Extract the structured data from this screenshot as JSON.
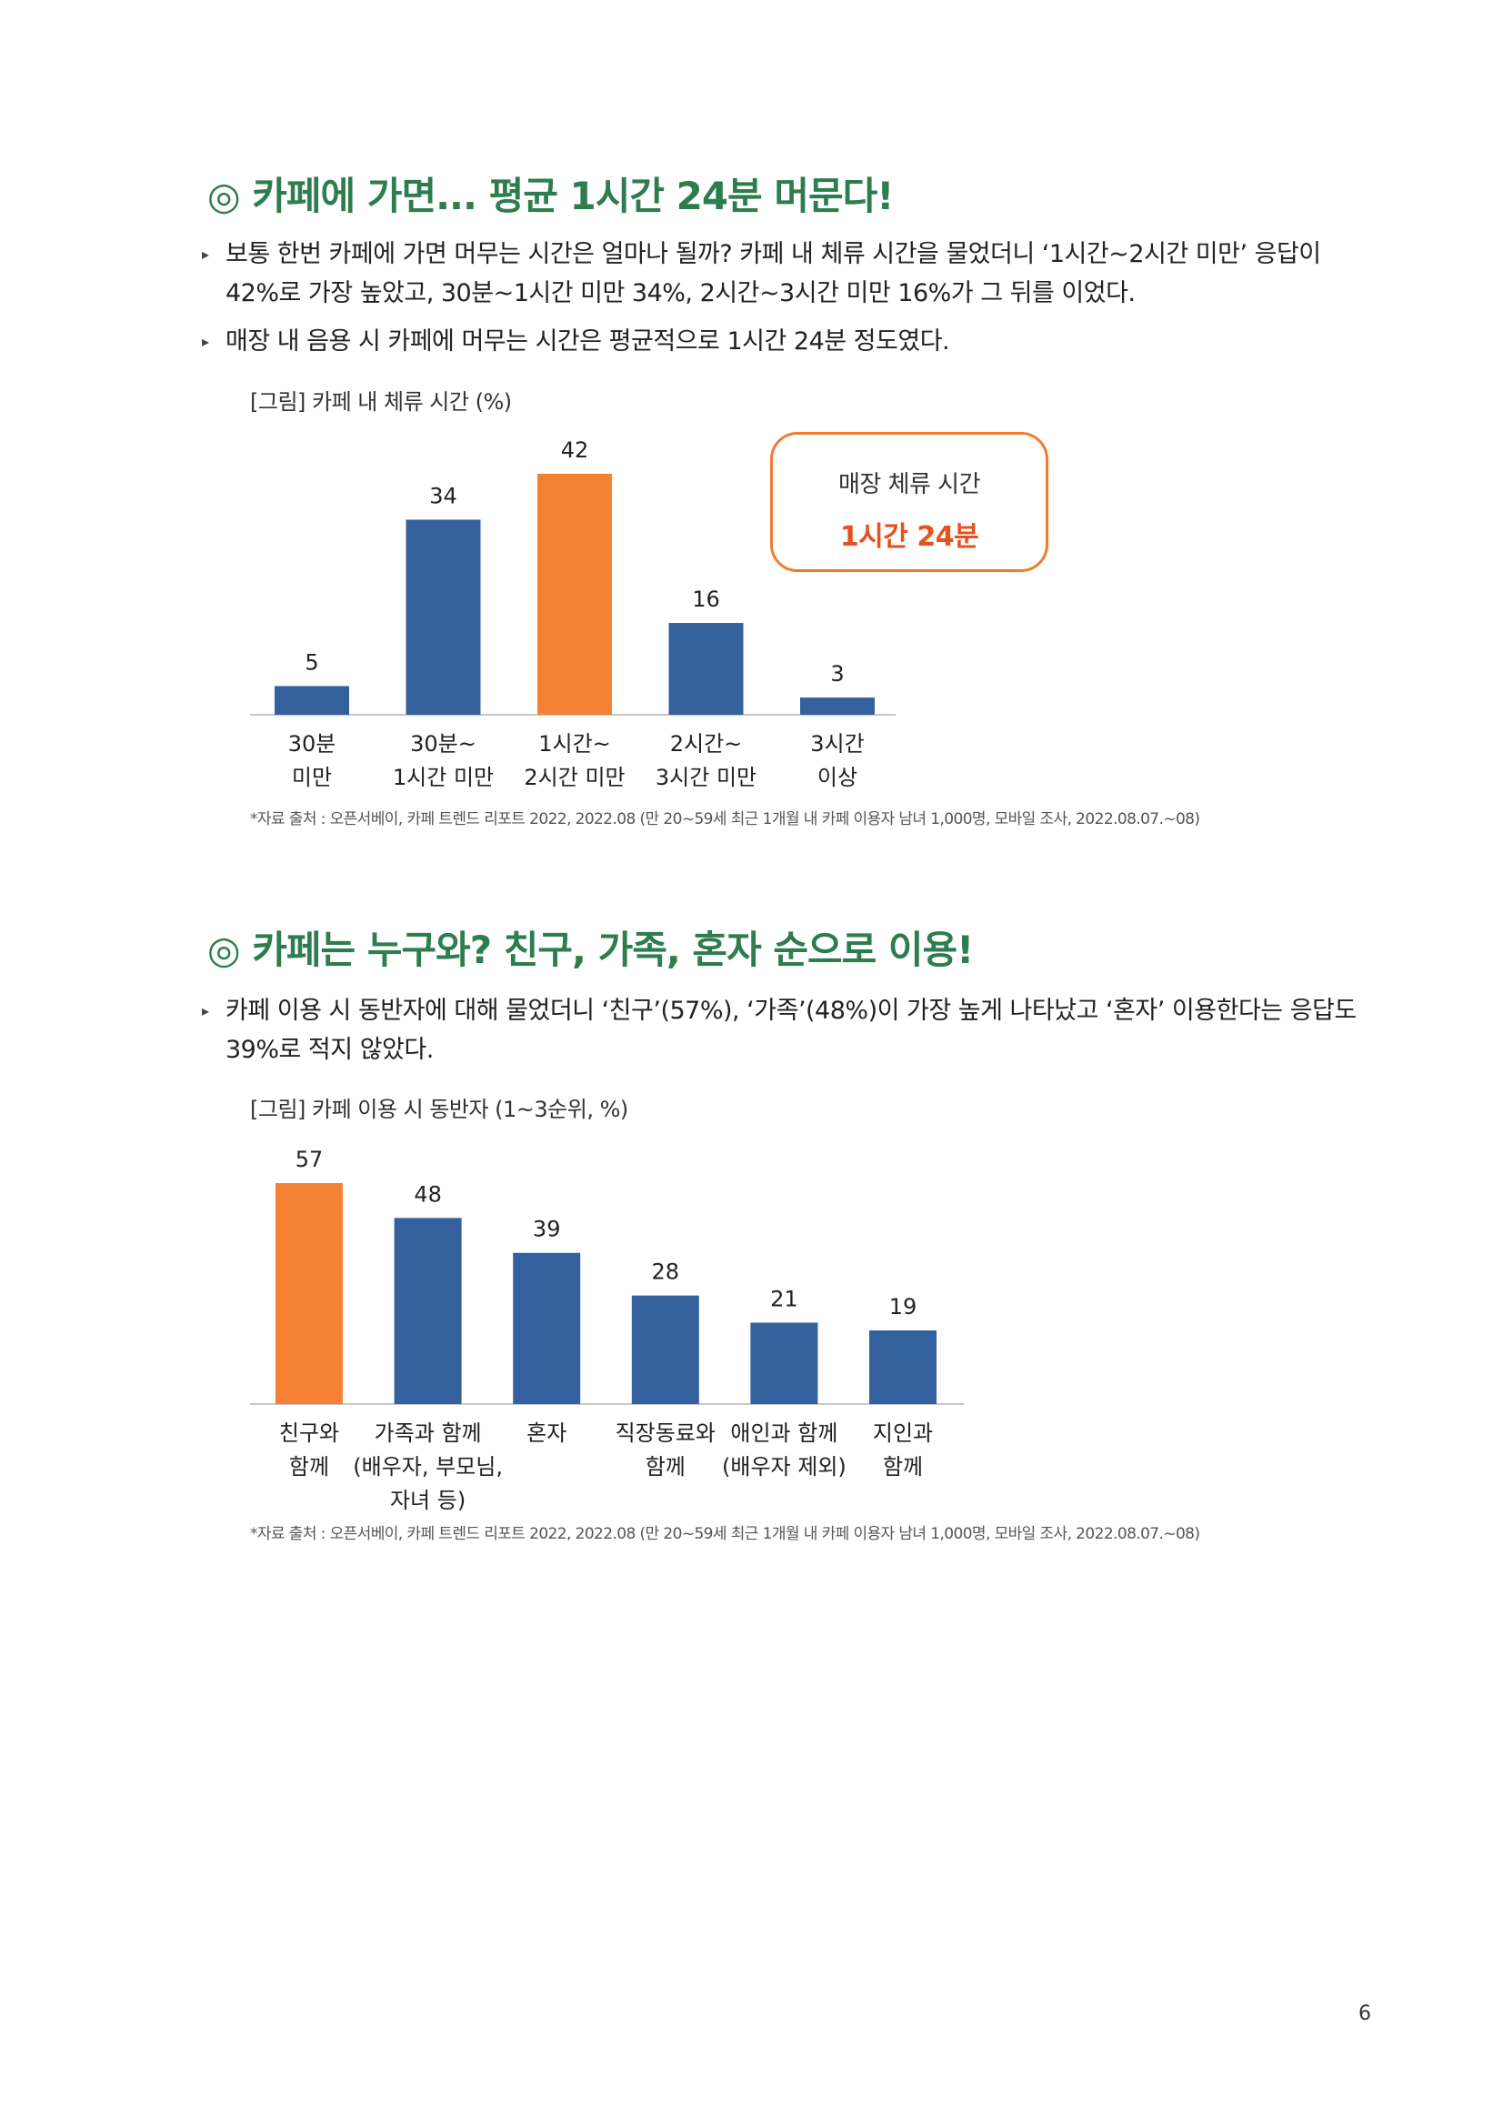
{
  "colors": {
    "accent_green": "#2e7d4f",
    "bar_blue": "#35609e",
    "bar_orange": "#f58232",
    "callout_red": "#e8501f",
    "callout_border": "#ef7d2d"
  },
  "section1": {
    "heading": "◎ 카페에 가면... 평균 1시간 24분 머문다!",
    "bullets": [
      "보통 한번 카페에 가면 머무는 시간은 얼마나 될까? 카페 내 체류 시간을 물었더니 ‘1시간~2시간 미만’ 응답이 42%로 가장 높았고, 30분~1시간 미만 34%, 2시간~3시간 미만 16%가 그 뒤를 이었다.",
      "매장 내 음용 시 카페에 머무는 시간은 평균적으로 1시간 24분 정도였다."
    ],
    "figure_caption": "[그림] 카페 내 체류 시간 (%)",
    "callout": {
      "label": "매장 체류 시간",
      "value": "1시간 24분"
    },
    "source": "*자료 출처 : 오픈서베이, 카페 트렌드 리포트 2022, 2022.08 (만 20~59세 최근 1개월 내 카페 이용자 남녀 1,000명, 모바일 조사, 2022.08.07.~08)"
  },
  "section2": {
    "heading": "◎ 카페는 누구와? 친구, 가족, 혼자 순으로 이용!",
    "bullets": [
      "카페 이용 시 동반자에 대해 물었더니 ‘친구’(57%), ‘가족’(48%)이 가장 높게 나타났고 ‘혼자’ 이용한다는 응답도 39%로 적지 않았다."
    ],
    "figure_caption": "[그림] 카페 이용 시 동반자 (1~3순위, %)",
    "source": "*자료 출처 : 오픈서베이, 카페 트렌드 리포트 2022, 2022.08 (만 20~59세 최근 1개월 내 카페 이용자 남녀 1,000명, 모바일 조사, 2022.08.07.~08)"
  },
  "page_number": "6",
  "chart_data": [
    {
      "type": "bar",
      "title": "",
      "categories": [
        [
          "30분",
          "미만"
        ],
        [
          "30분~",
          "1시간 미만"
        ],
        [
          "1시간~",
          "2시간 미만"
        ],
        [
          "2시간~",
          "3시간 미만"
        ],
        [
          "3시간",
          "이상"
        ]
      ],
      "values": [
        5,
        34,
        42,
        16,
        3
      ],
      "highlight_index": 2,
      "ylim": [
        0,
        42
      ],
      "grid": false,
      "legend": "none",
      "xlabel": "",
      "ylabel": ""
    },
    {
      "type": "bar",
      "title": "",
      "categories": [
        [
          "친구와",
          "함께"
        ],
        [
          "가족과 함께",
          "(배우자, 부모님,",
          "자녀 등)"
        ],
        [
          "혼자"
        ],
        [
          "직장동료와",
          "함께"
        ],
        [
          "애인과 함께",
          "(배우자 제외)"
        ],
        [
          "지인과",
          "함께"
        ]
      ],
      "values": [
        57,
        48,
        39,
        28,
        21,
        19
      ],
      "highlight_index": 0,
      "ylim": [
        0,
        57
      ],
      "grid": false,
      "legend": "none",
      "xlabel": "",
      "ylabel": ""
    }
  ]
}
